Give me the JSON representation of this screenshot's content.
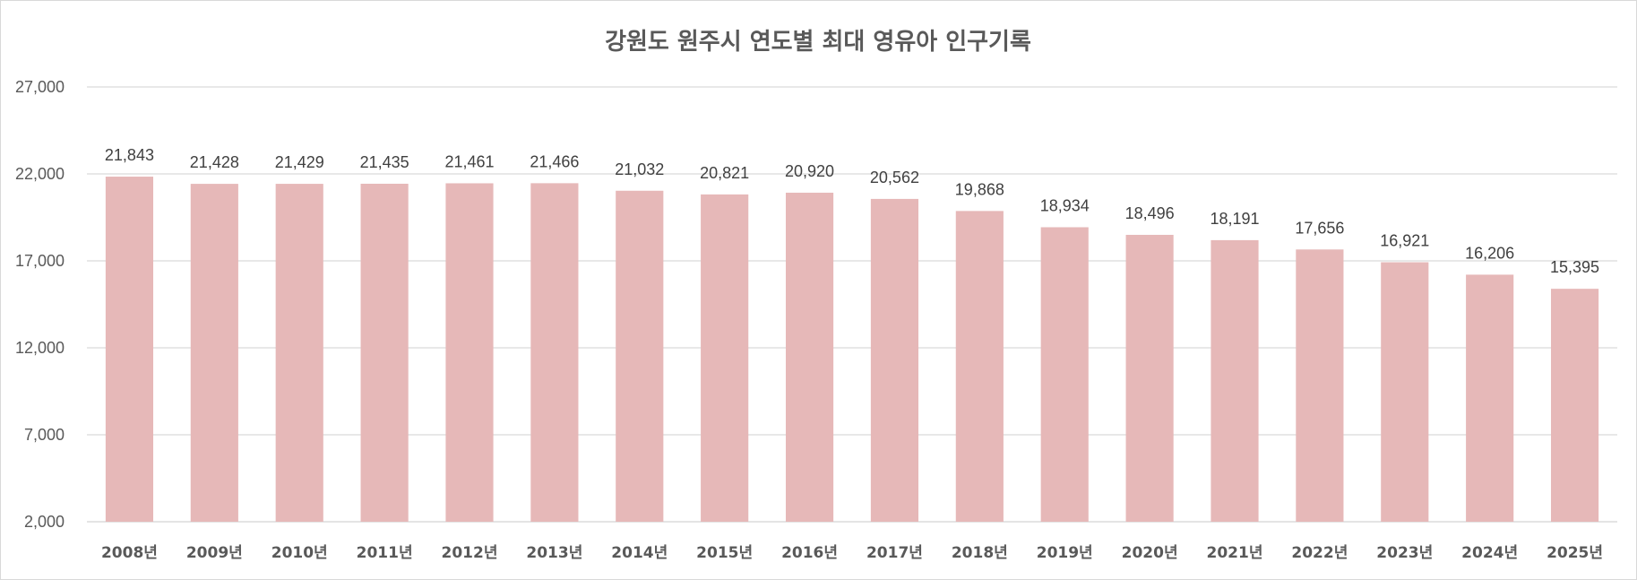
{
  "chart_data": {
    "type": "bar",
    "title": "강원도 원주시 연도별 최대 영유아 인구기록",
    "xlabel": "",
    "ylabel": "",
    "ylim": [
      2000,
      27000
    ],
    "yticks": [
      "2,000",
      "7,000",
      "12,000",
      "17,000",
      "22,000",
      "27,000"
    ],
    "grid": true,
    "legend": "none",
    "colors": {
      "bar": "#e6b8b8",
      "grid": "#d9d9d9",
      "text": "#595959"
    },
    "categories": [
      "2008년",
      "2009년",
      "2010년",
      "2011년",
      "2012년",
      "2013년",
      "2014년",
      "2015년",
      "2016년",
      "2017년",
      "2018년",
      "2019년",
      "2020년",
      "2021년",
      "2022년",
      "2023년",
      "2024년",
      "2025년"
    ],
    "values": [
      21843,
      21428,
      21429,
      21435,
      21461,
      21466,
      21032,
      20821,
      20920,
      20562,
      19868,
      18934,
      18496,
      18191,
      17656,
      16921,
      16206,
      15395
    ],
    "value_labels": [
      "21,843",
      "21,428",
      "21,429",
      "21,435",
      "21,461",
      "21,466",
      "21,032",
      "20,821",
      "20,920",
      "20,562",
      "19,868",
      "18,934",
      "18,496",
      "18,191",
      "17,656",
      "16,921",
      "16,206",
      "15,395"
    ]
  }
}
